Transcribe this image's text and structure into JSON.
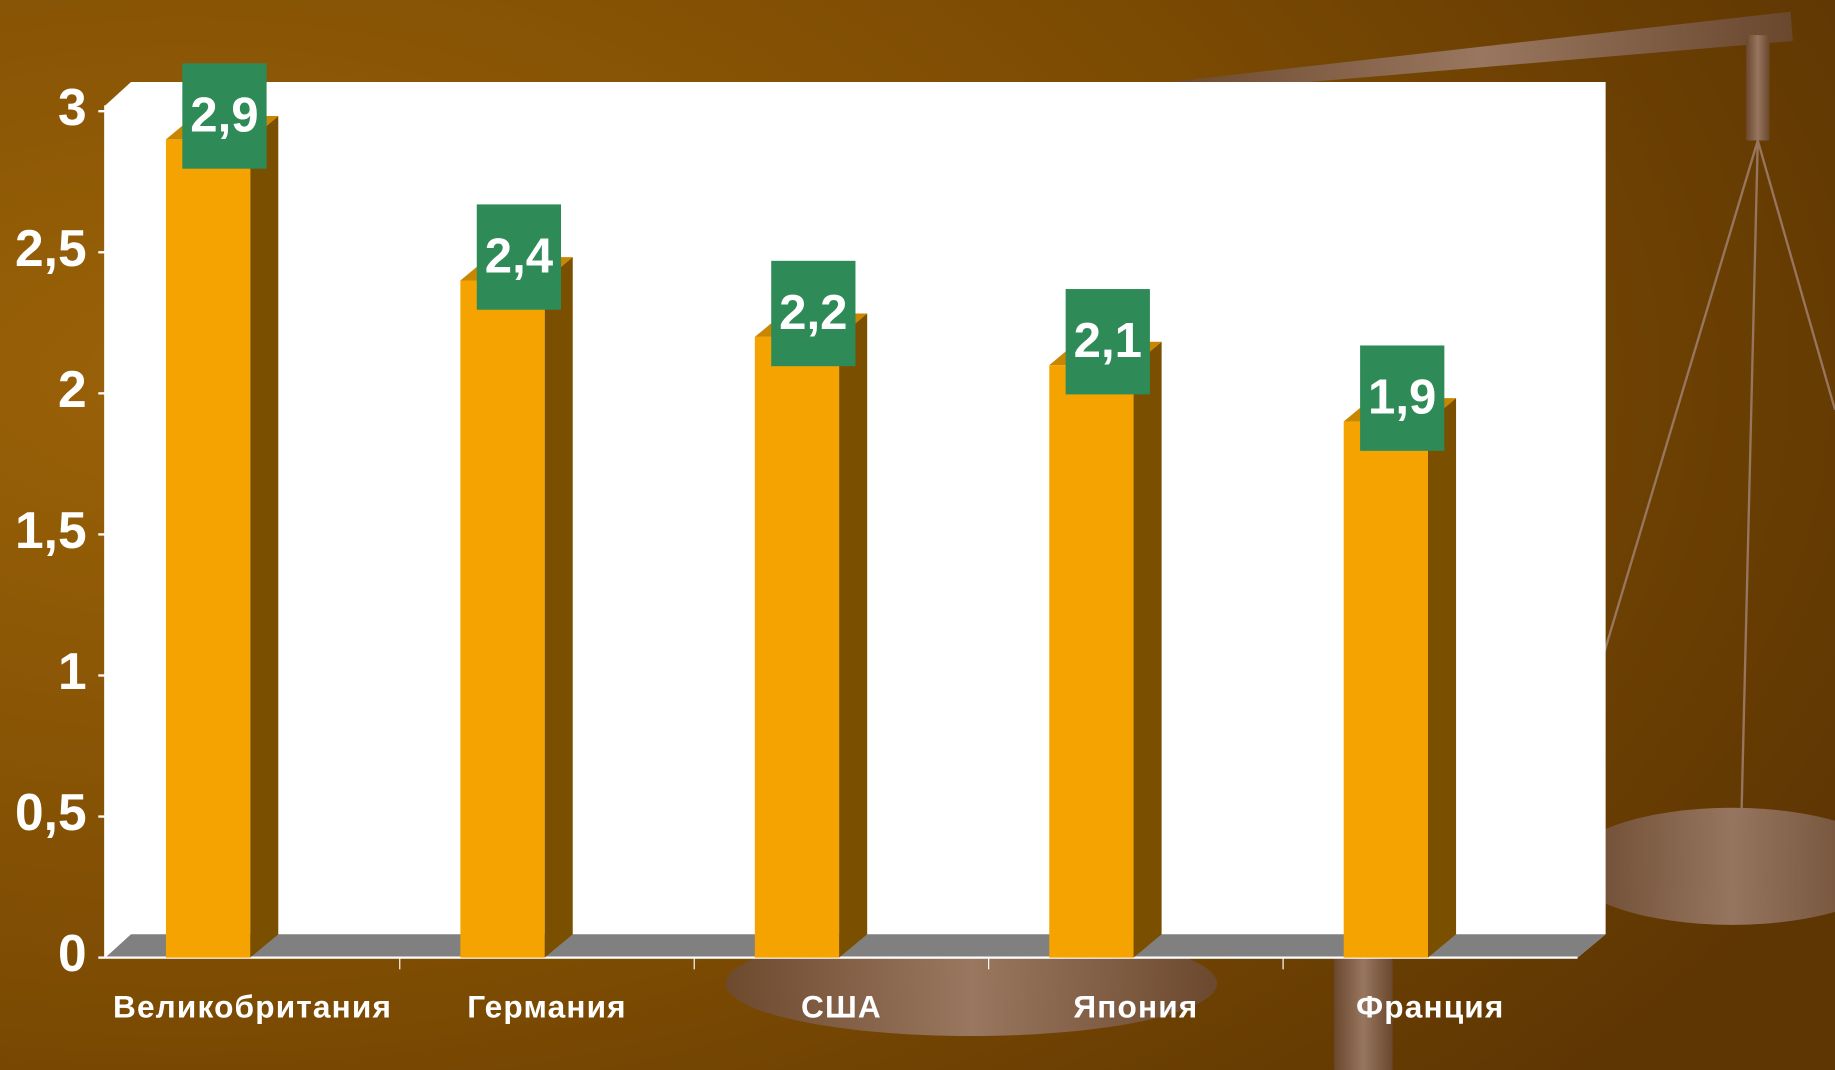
{
  "chart_data": {
    "type": "bar",
    "categories": [
      "Великобритания",
      "Германия",
      "США",
      "Япония",
      "Франция"
    ],
    "values": [
      2.9,
      2.4,
      2.2,
      2.1,
      1.9
    ],
    "value_labels": [
      "2,9",
      "2,4",
      "2,2",
      "2,1",
      "1,9"
    ],
    "color": "#f5a300",
    "label_color": "#2e8b57",
    "ylim": [
      0,
      3
    ],
    "yticks": [
      0,
      {
        "value": 0.5,
        "label": "0,5"
      },
      1,
      {
        "value": 1.5,
        "label": "1,5"
      },
      2,
      {
        "value": 2.5,
        "label": "2,5"
      },
      3
    ]
  }
}
